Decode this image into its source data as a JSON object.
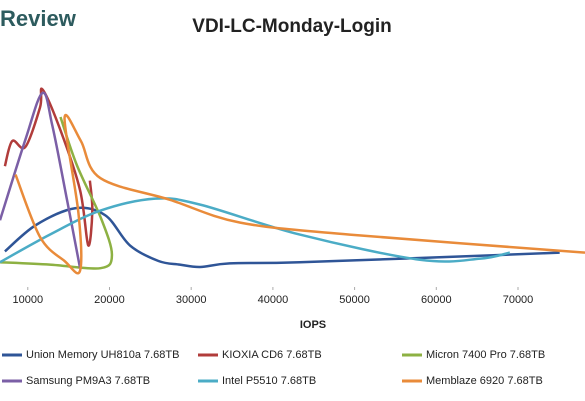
{
  "brand": "Review",
  "chart_data": {
    "type": "line",
    "title": "VDI-LC-Monday-Login",
    "x_label": "IOPS",
    "xlim": [
      6600,
      78200
    ],
    "ylim": [
      0,
      2
    ],
    "xticks": [
      10000,
      20000,
      30000,
      40000,
      50000,
      60000,
      70000
    ],
    "series": [
      {
        "name": "Union Memory UH810a 7.68TB",
        "color": "#2f5597",
        "x": [
          7200,
          11000,
          15800,
          19500,
          22500,
          26000,
          28600,
          31100,
          34700,
          43300,
          67800,
          75100
        ],
        "values": [
          0.28,
          0.5,
          0.64,
          0.58,
          0.33,
          0.2,
          0.17,
          0.15,
          0.18,
          0.19,
          0.25,
          0.27
        ]
      },
      {
        "name": "KIOXIA CD6 7.68TB",
        "color": "#b13c3b",
        "x": [
          7200,
          8100,
          9700,
          11500,
          11800,
          14000,
          16400,
          17400,
          17900,
          17600
        ],
        "values": [
          0.99,
          1.2,
          1.15,
          1.48,
          1.63,
          1.29,
          0.79,
          0.33,
          0.62,
          0.87
        ]
      },
      {
        "name": "Micron 7400 Pro 7.68TB",
        "color": "#8db143",
        "x": [
          6600,
          12700,
          18900,
          20300,
          19000,
          16000,
          14000
        ],
        "values": [
          0.19,
          0.17,
          0.14,
          0.25,
          0.55,
          1.0,
          1.4
        ]
      },
      {
        "name": "Samsung PM9A3 7.68TB",
        "color": "#7b5fa6",
        "x": [
          6600,
          9700,
          11800,
          13000,
          14800,
          16400
        ],
        "values": [
          0.54,
          1.21,
          1.6,
          1.33,
          0.71,
          0.14
        ]
      },
      {
        "name": "Intel P5510 7.68TB",
        "color": "#4bacc6",
        "x": [
          6600,
          12700,
          18900,
          25600,
          31100,
          43300,
          58000,
          65400,
          69000
        ],
        "values": [
          0.19,
          0.42,
          0.62,
          0.72,
          0.67,
          0.42,
          0.21,
          0.22,
          0.27
        ]
      },
      {
        "name": "Memblaze 6920 7.68TB",
        "color": "#e98b3a",
        "x": [
          8500,
          11500,
          14500,
          16400,
          16200,
          14500,
          16500,
          18900,
          27400,
          36000,
          49400,
          78200
        ],
        "values": [
          0.92,
          0.4,
          0.2,
          0.12,
          0.6,
          1.39,
          1.2,
          0.89,
          0.71,
          0.52,
          0.42,
          0.27
        ]
      }
    ]
  }
}
